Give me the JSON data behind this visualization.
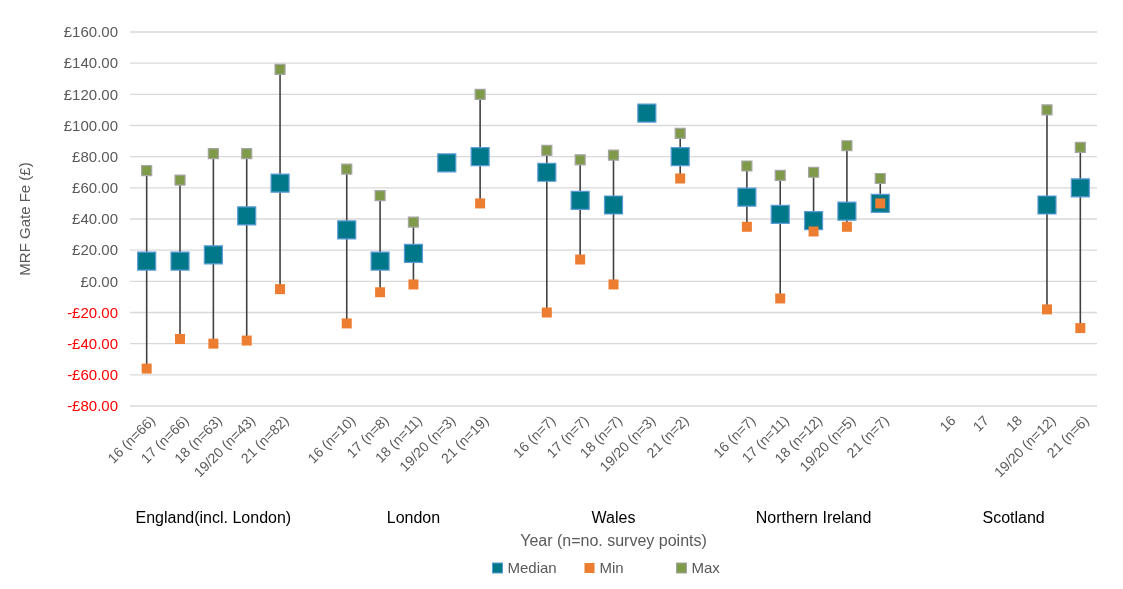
{
  "chart_data": {
    "type": "scatter",
    "ylabel": "MRF Gate Fe (£)",
    "xlabel": "Year (n=no. survey points)",
    "categories": [
      "16 (n=66)",
      "17 (n=66)",
      "18 (n=63)",
      "19/20 (n=43)",
      "21 (n=82)",
      null,
      "16 (n=10)",
      "17 (n=8)",
      "18 (n=11)",
      "19/20 (n=3)",
      "21 (n=19)",
      null,
      "16 (n=7)",
      "17 (n=7)",
      "18 (n=7)",
      "19/20 (n=3)",
      "21 (n=2)",
      null,
      "16 (n=7)",
      "17 (n=11)",
      "18 (n=12)",
      "19/20 (n=5)",
      "21 (n=7)",
      null,
      "16",
      "17",
      "18",
      "19/20 (n=12)",
      "21 (n=6)"
    ],
    "annotations": [
      "England(incl. London)",
      "London",
      "Wales",
      "Northern Ireland",
      "Scotland"
    ],
    "series": [
      {
        "name": "Median",
        "color": "#00788a",
        "values": [
          13,
          13,
          17,
          42,
          63,
          null,
          33,
          13,
          18,
          76,
          80,
          null,
          70,
          52,
          49,
          108,
          80,
          null,
          54,
          43,
          39,
          45,
          50,
          null,
          null,
          null,
          null,
          49,
          60
        ]
      },
      {
        "name": "Min",
        "color": "#ed7d31",
        "values": [
          -56,
          -37,
          -40,
          -38,
          -5,
          null,
          -27,
          -7,
          -2,
          null,
          50,
          null,
          -20,
          14,
          -2,
          null,
          66,
          null,
          35,
          -11,
          32,
          35,
          50,
          null,
          null,
          null,
          null,
          -18,
          -30
        ]
      },
      {
        "name": "Max",
        "color": "#7f9a48",
        "values": [
          71,
          65,
          82,
          82,
          136,
          null,
          72,
          55,
          38,
          null,
          120,
          null,
          84,
          78,
          81,
          null,
          95,
          null,
          74,
          68,
          70,
          87,
          66,
          null,
          null,
          null,
          null,
          110,
          86
        ]
      }
    ],
    "ylim": [
      -80,
      160
    ],
    "yticks": [
      {
        "value": -80,
        "label": "-£80.00"
      },
      {
        "value": -60,
        "label": "-£60.00"
      },
      {
        "value": -40,
        "label": "-£40.00"
      },
      {
        "value": -20,
        "label": "-£20.00"
      },
      {
        "value": 0,
        "label": "£0.00"
      },
      {
        "value": 20,
        "label": "£20.00"
      },
      {
        "value": 40,
        "label": "£40.00"
      },
      {
        "value": 60,
        "label": "£60.00"
      },
      {
        "value": 80,
        "label": "£80.00"
      },
      {
        "value": 100,
        "label": "£100.00"
      },
      {
        "value": 120,
        "label": "£120.00"
      },
      {
        "value": 140,
        "label": "£140.00"
      },
      {
        "value": 160,
        "label": "£160.00"
      }
    ],
    "grid": "y",
    "legend": "bottom",
    "marker": "square"
  }
}
